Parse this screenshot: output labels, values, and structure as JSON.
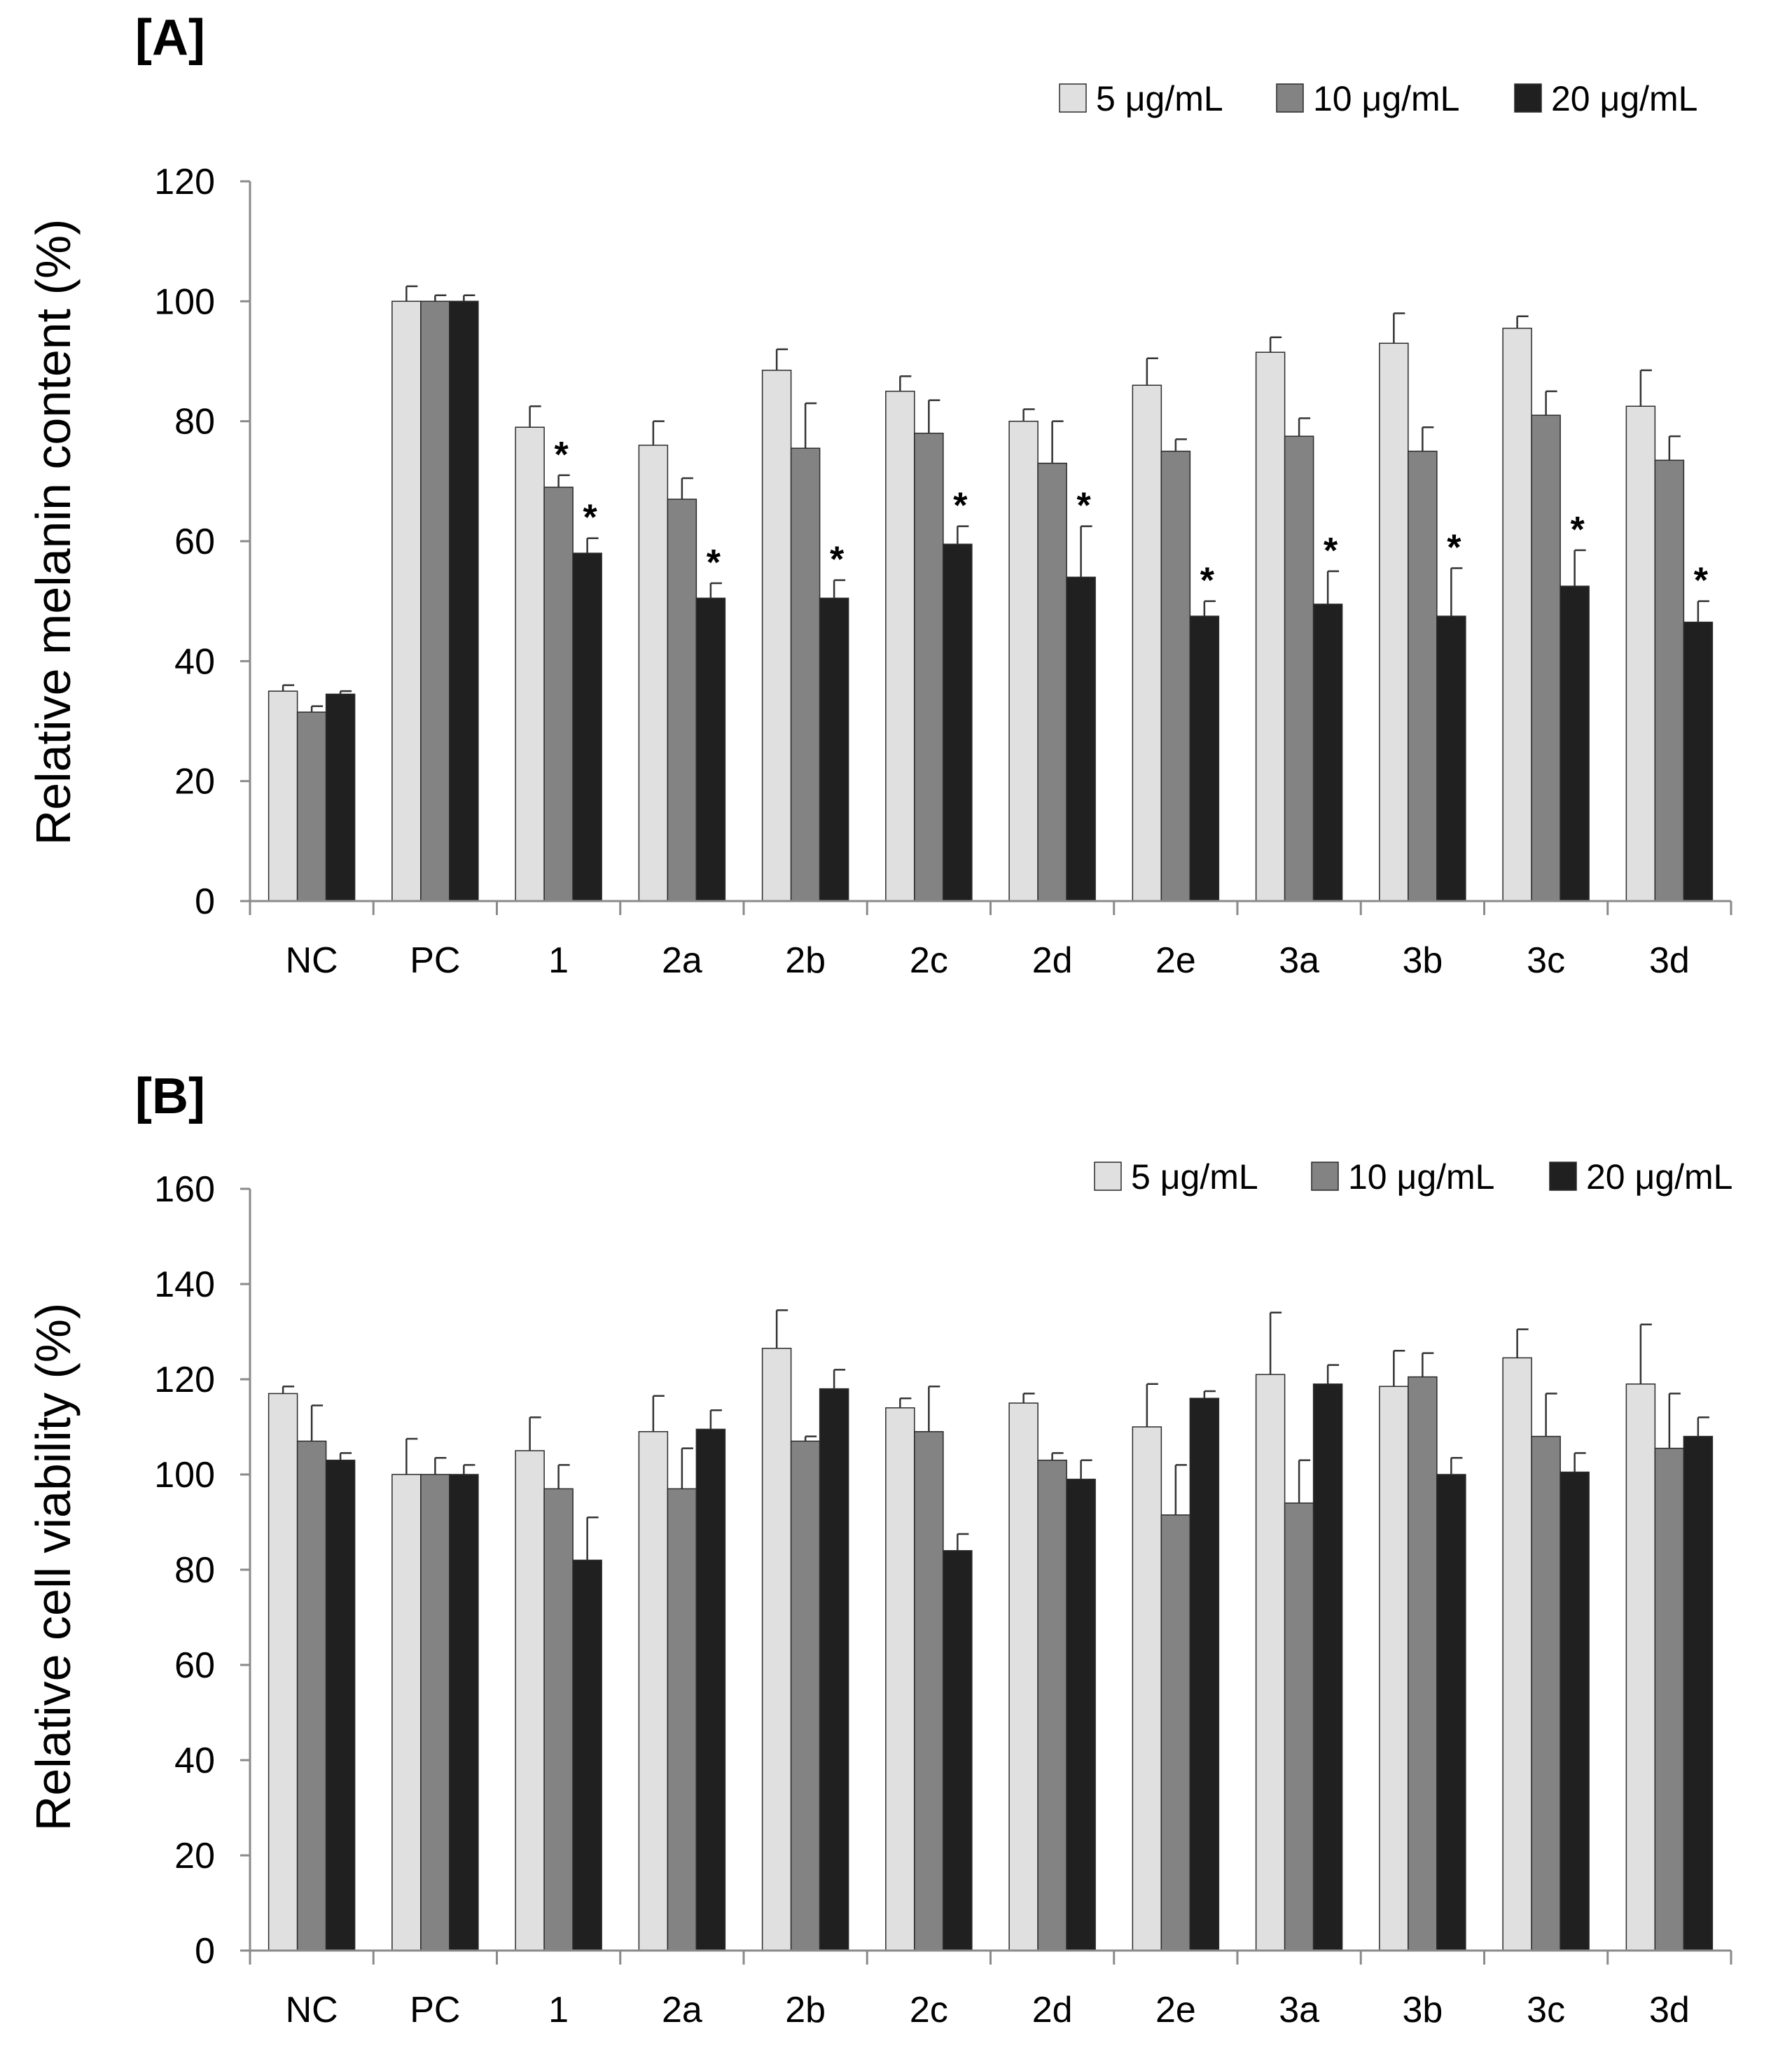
{
  "chart_data": [
    {
      "panel": "[A]",
      "type": "bar",
      "title": "",
      "xlabel": "",
      "ylabel": "Relative melanin content (%)",
      "ylim": [
        0,
        120
      ],
      "yticks": [
        0,
        20,
        40,
        60,
        80,
        100,
        120
      ],
      "grid": false,
      "legend_position": "top-right",
      "categories": [
        "NC",
        "PC",
        "1",
        "2a",
        "2b",
        "2c",
        "2d",
        "2e",
        "3a",
        "3b",
        "3c",
        "3d"
      ],
      "series": [
        {
          "name": "5 μg/mL",
          "color": "#e0e0e0",
          "values": [
            35,
            100,
            79,
            76,
            88.5,
            85,
            80,
            86,
            91.5,
            93,
            95.5,
            82.5
          ],
          "errors": [
            1,
            2.5,
            3.5,
            4,
            3.5,
            2.5,
            2,
            4.5,
            2.5,
            5,
            2,
            6
          ]
        },
        {
          "name": "10 μg/mL",
          "color": "#838383",
          "values": [
            31.5,
            100,
            69,
            67,
            75.5,
            78,
            73,
            75,
            77.5,
            75,
            81,
            73.5
          ],
          "errors": [
            1,
            1,
            2,
            3.5,
            7.5,
            5.5,
            7,
            2,
            3,
            4,
            4,
            4
          ]
        },
        {
          "name": "20 μg/mL",
          "color": "#202020",
          "values": [
            34.5,
            100,
            58,
            50.5,
            50.5,
            59.5,
            54,
            47.5,
            49.5,
            47.5,
            52.5,
            46.5
          ],
          "errors": [
            0.5,
            1,
            2.5,
            2.5,
            3,
            3,
            8.5,
            2.5,
            5.5,
            8,
            6,
            3.5
          ]
        }
      ],
      "significance_marker": "*",
      "significance": [
        {
          "category": "1",
          "series": "10 μg/mL"
        },
        {
          "category": "1",
          "series": "20 μg/mL"
        },
        {
          "category": "2a",
          "series": "20 μg/mL"
        },
        {
          "category": "2b",
          "series": "20 μg/mL"
        },
        {
          "category": "2c",
          "series": "20 μg/mL"
        },
        {
          "category": "2d",
          "series": "20 μg/mL"
        },
        {
          "category": "2e",
          "series": "20 μg/mL"
        },
        {
          "category": "3a",
          "series": "20 μg/mL"
        },
        {
          "category": "3b",
          "series": "20 μg/mL"
        },
        {
          "category": "3c",
          "series": "20 μg/mL"
        },
        {
          "category": "3d",
          "series": "20 μg/mL"
        }
      ]
    },
    {
      "panel": "[B]",
      "type": "bar",
      "title": "",
      "xlabel": "",
      "ylabel": "Relative cell viability (%)",
      "ylim": [
        0,
        160
      ],
      "yticks": [
        0,
        20,
        40,
        60,
        80,
        100,
        120,
        140,
        160
      ],
      "grid": false,
      "legend_position": "top-right",
      "categories": [
        "NC",
        "PC",
        "1",
        "2a",
        "2b",
        "2c",
        "2d",
        "2e",
        "3a",
        "3b",
        "3c",
        "3d"
      ],
      "series": [
        {
          "name": "5 μg/mL",
          "color": "#e0e0e0",
          "values": [
            117,
            100,
            105,
            109,
            126.5,
            114,
            115,
            110,
            121,
            118.5,
            124.5,
            119
          ],
          "errors": [
            1.5,
            7.5,
            7,
            7.5,
            8,
            2,
            2,
            9,
            13,
            7.5,
            6,
            12.5
          ]
        },
        {
          "name": "10 μg/mL",
          "color": "#838383",
          "values": [
            107,
            100,
            97,
            97,
            107,
            109,
            103,
            91.5,
            94,
            120.5,
            108,
            105.5
          ],
          "errors": [
            7.5,
            3.5,
            5,
            8.5,
            1,
            9.5,
            1.5,
            10.5,
            9,
            5,
            9,
            11.5
          ]
        },
        {
          "name": "20 μg/mL",
          "color": "#202020",
          "values": [
            103,
            100,
            82,
            109.5,
            118,
            84,
            99,
            116,
            119,
            100,
            100.5,
            108
          ],
          "errors": [
            1.5,
            2,
            9,
            4,
            4,
            3.5,
            4,
            1.5,
            4,
            3.5,
            4,
            4
          ]
        }
      ],
      "significance_marker": "",
      "significance": []
    }
  ]
}
